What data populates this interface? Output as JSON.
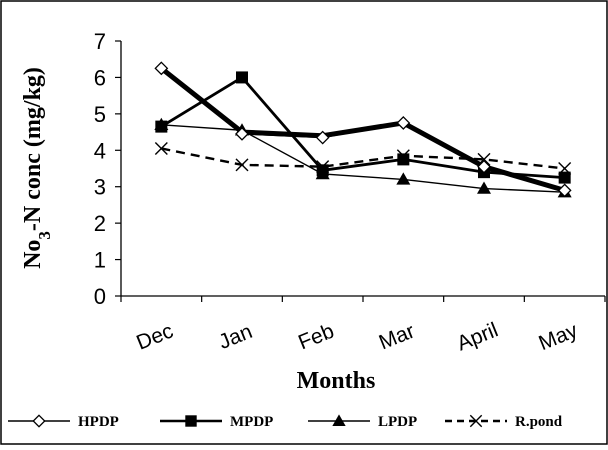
{
  "chart_data": {
    "type": "line",
    "categories": [
      "Dec",
      "Jan",
      "Feb",
      "Mar",
      "April",
      "May"
    ],
    "xlabel": "Months",
    "ylabel_main": "No",
    "ylabel_sub": "3",
    "ylabel_rest": "-N conc (mg/kg)",
    "ylim": [
      0,
      7
    ],
    "yticks": [
      "0",
      "1",
      "2",
      "3",
      "4",
      "5",
      "6",
      "7"
    ],
    "grid": false,
    "legend_position": "bottom",
    "series": [
      {
        "name": "HPDP",
        "values": [
          6.25,
          4.45,
          4.35,
          4.75,
          3.55,
          2.9
        ],
        "marker": "diamond-open",
        "line": "solid",
        "width": 1.4,
        "color": "#000000"
      },
      {
        "name": "MPDP",
        "values": [
          4.65,
          6.0,
          3.45,
          3.75,
          3.4,
          3.25
        ],
        "marker": "square",
        "line": "solid",
        "width": 2.8,
        "color": "#000000"
      },
      {
        "name": "LPDP",
        "values": [
          4.7,
          4.55,
          3.35,
          3.2,
          2.95,
          2.85
        ],
        "marker": "triangle",
        "line": "solid",
        "width": 1.4,
        "color": "#000000"
      },
      {
        "name": "R.pond",
        "values": [
          4.05,
          3.6,
          3.55,
          3.85,
          3.75,
          3.5
        ],
        "marker": "x",
        "line": "dashed",
        "width": 2.4,
        "color": "#000000"
      }
    ],
    "thick_band": {
      "values": [
        6.25,
        4.5,
        4.4,
        4.75,
        3.55,
        2.9
      ],
      "width": 5
    }
  }
}
